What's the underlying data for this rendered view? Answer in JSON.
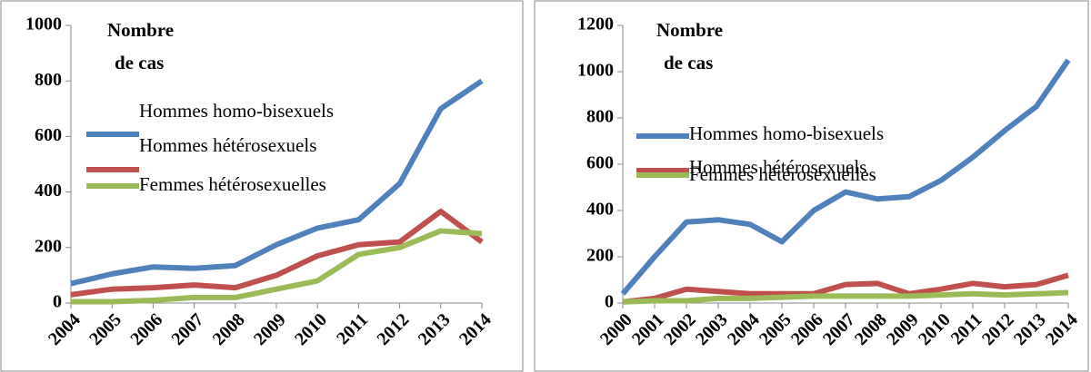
{
  "chart_data": [
    {
      "type": "line",
      "annotation": [
        "Nombre",
        "de cas"
      ],
      "x": [
        "2004",
        "2005",
        "2006",
        "2007",
        "2008",
        "2009",
        "2010",
        "2011",
        "2012",
        "2013",
        "2014"
      ],
      "series": [
        {
          "name": "Hommes homo-bisexuels",
          "color": "#4f81bd",
          "values": [
            70,
            105,
            130,
            125,
            135,
            210,
            270,
            300,
            430,
            700,
            800
          ]
        },
        {
          "name": "Hommes hétérosexuels",
          "color": "#c0504d",
          "values": [
            30,
            50,
            55,
            65,
            55,
            100,
            170,
            210,
            220,
            330,
            220
          ]
        },
        {
          "name": "Femmes hétérosexuelles",
          "color": "#9bbb59",
          "values": [
            5,
            5,
            10,
            20,
            20,
            50,
            80,
            175,
            200,
            260,
            250
          ]
        }
      ],
      "ylim": [
        0,
        1000
      ],
      "yticks": [
        0,
        200,
        400,
        600,
        800,
        1000
      ],
      "grid": false
    },
    {
      "type": "line",
      "annotation": [
        "Nombre",
        "de cas"
      ],
      "x": [
        "2000",
        "2001",
        "2002",
        "2003",
        "2004",
        "2005",
        "2006",
        "2007",
        "2008",
        "2009",
        "2010",
        "2011",
        "2012",
        "2013",
        "2014"
      ],
      "series": [
        {
          "name": "Hommes homo-bisexuels",
          "color": "#4f81bd",
          "values": [
            40,
            200,
            350,
            360,
            340,
            265,
            400,
            480,
            450,
            460,
            530,
            630,
            745,
            850,
            1050
          ]
        },
        {
          "name": "Hommes hétérosexuels",
          "color": "#c0504d",
          "values": [
            5,
            20,
            60,
            50,
            40,
            40,
            40,
            80,
            85,
            40,
            60,
            85,
            70,
            80,
            120
          ]
        },
        {
          "name": "Femmes hétérosexuelles",
          "color": "#9bbb59",
          "values": [
            5,
            10,
            10,
            20,
            20,
            25,
            30,
            30,
            30,
            30,
            35,
            40,
            35,
            40,
            45
          ]
        }
      ],
      "ylim": [
        0,
        1200
      ],
      "yticks": [
        0,
        200,
        400,
        600,
        800,
        1000,
        1200
      ],
      "grid": false
    }
  ]
}
